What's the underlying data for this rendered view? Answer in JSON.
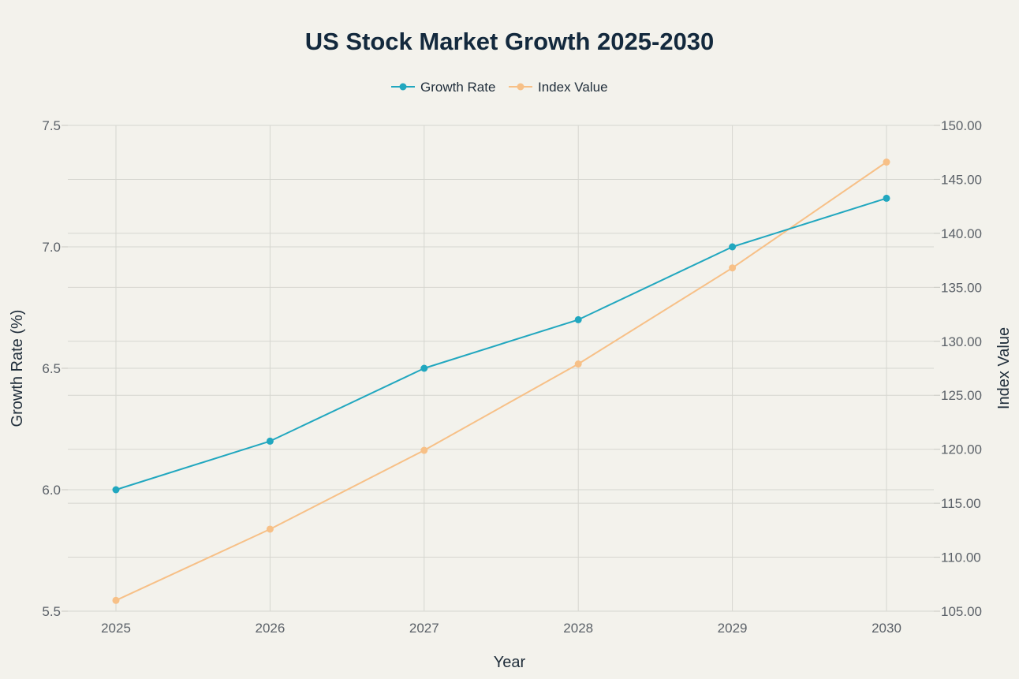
{
  "chart_data": {
    "type": "line",
    "title": "US Stock Market Growth 2025-2030",
    "xlabel": "Year",
    "ylabel": "Growth Rate (%)",
    "y2label": "Index Value",
    "x": [
      "2025",
      "2026",
      "2027",
      "2028",
      "2029",
      "2030"
    ],
    "ylim": [
      5.5,
      7.5
    ],
    "y2lim": [
      105,
      150
    ],
    "yticks": [
      "5.5",
      "6.0",
      "6.5",
      "7.0",
      "7.5"
    ],
    "y2ticks": [
      "105.00",
      "110.00",
      "115.00",
      "120.00",
      "125.00",
      "130.00",
      "135.00",
      "140.00",
      "145.00",
      "150.00"
    ],
    "legend_position": "top-center",
    "grid": true,
    "series": [
      {
        "name": "Growth Rate",
        "axis": "left",
        "color": "#21a7bf",
        "values": [
          6.0,
          6.2,
          6.5,
          6.7,
          7.0,
          7.2
        ]
      },
      {
        "name": "Index Value",
        "axis": "right",
        "color": "#f7c087",
        "values": [
          106.0,
          112.6,
          119.9,
          127.9,
          136.8,
          146.6
        ]
      }
    ]
  }
}
